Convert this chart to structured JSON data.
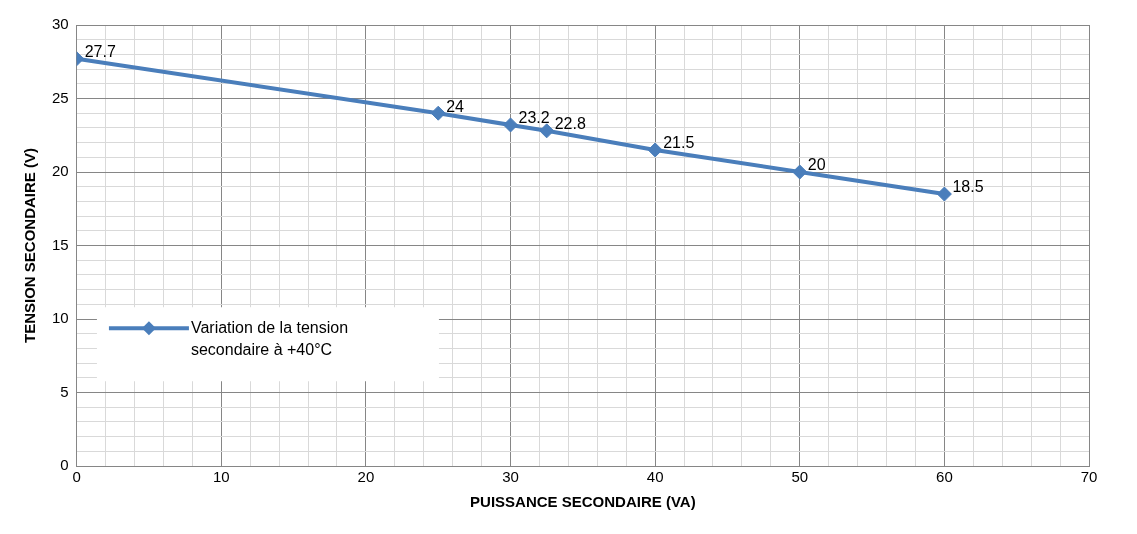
{
  "chart_data": {
    "type": "line",
    "xlabel": "PUISSANCE SECONDAIRE (VA)",
    "ylabel": "TENSION SECONDAIRE (V)",
    "x": [
      0,
      25,
      30,
      32.5,
      40,
      50,
      60
    ],
    "series": [
      {
        "name": "Variation de la tension secondaire à +40°C",
        "color": "#4a7ebb",
        "values": [
          27.7,
          24,
          23.2,
          22.8,
          21.5,
          20,
          18.5
        ]
      }
    ],
    "xlim": [
      0,
      70
    ],
    "xticks": [
      0,
      {
        "value": 2,
        "label": null
      },
      {
        "value": 4,
        "label": null
      },
      {
        "value": 6,
        "label": null
      },
      {
        "value": 8,
        "label": null
      },
      10,
      {
        "value": 12,
        "label": null
      },
      {
        "value": 14,
        "label": null
      },
      {
        "value": 16,
        "label": null
      },
      {
        "value": 18,
        "label": null
      },
      20,
      {
        "value": 22,
        "label": null
      },
      {
        "value": 24,
        "label": null
      },
      {
        "value": 26,
        "label": null
      },
      {
        "value": 28,
        "label": null
      },
      30,
      {
        "value": 32,
        "label": null
      },
      {
        "value": 34,
        "label": null
      },
      {
        "value": 36,
        "label": null
      },
      {
        "value": 38,
        "label": null
      },
      40,
      {
        "value": 42,
        "label": null
      },
      {
        "value": 44,
        "label": null
      },
      {
        "value": 46,
        "label": null
      },
      {
        "value": 48,
        "label": null
      },
      50,
      {
        "value": 52,
        "label": null
      },
      {
        "value": 54,
        "label": null
      },
      {
        "value": 56,
        "label": null
      },
      {
        "value": 58,
        "label": null
      },
      60,
      {
        "value": 62,
        "label": null
      },
      {
        "value": 64,
        "label": null
      },
      {
        "value": 66,
        "label": null
      },
      {
        "value": 68,
        "label": null
      },
      70
    ],
    "ylim": [
      0,
      30
    ],
    "yticks": [
      0,
      {
        "value": 1,
        "label": null
      },
      {
        "value": 2,
        "label": null
      },
      {
        "value": 3,
        "label": null
      },
      {
        "value": 4,
        "label": null
      },
      5,
      {
        "value": 6,
        "label": null
      },
      {
        "value": 7,
        "label": null
      },
      {
        "value": 8,
        "label": null
      },
      {
        "value": 9,
        "label": null
      },
      10,
      {
        "value": 11,
        "label": null
      },
      {
        "value": 12,
        "label": null
      },
      {
        "value": 13,
        "label": null
      },
      {
        "value": 14,
        "label": null
      },
      15,
      {
        "value": 16,
        "label": null
      },
      {
        "value": 17,
        "label": null
      },
      {
        "value": 18,
        "label": null
      },
      {
        "value": 19,
        "label": null
      },
      20,
      {
        "value": 21,
        "label": null
      },
      {
        "value": 22,
        "label": null
      },
      {
        "value": 23,
        "label": null
      },
      {
        "value": 24,
        "label": null
      },
      25,
      {
        "value": 26,
        "label": null
      },
      {
        "value": 27,
        "label": null
      },
      {
        "value": 28,
        "label": null
      },
      {
        "value": 29,
        "label": null
      },
      30
    ],
    "grid": true,
    "legend": "center left",
    "marker": "diamond",
    "line_style": "solid",
    "data_labels": true
  }
}
